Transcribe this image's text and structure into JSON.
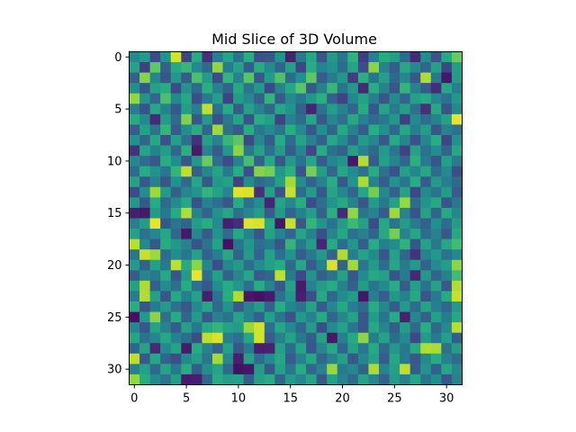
{
  "chart_data": {
    "type": "heatmap",
    "title": "Mid Slice of 3D Volume",
    "xlabel": "",
    "ylabel": "",
    "rows": 32,
    "cols": 32,
    "xlim": [
      -0.5,
      31.5
    ],
    "ylim": [
      31.5,
      -0.5
    ],
    "xticks": [
      0,
      5,
      10,
      15,
      20,
      25,
      30
    ],
    "yticks": [
      0,
      5,
      10,
      15,
      20,
      25,
      30
    ],
    "colormap": "viridis",
    "value_range": [
      0,
      1
    ],
    "grid": false,
    "values": [
      [
        0.47,
        0.55,
        0.24,
        0.52,
        0.94,
        0.21,
        0.62,
        0.14,
        0.43,
        0.59,
        0.38,
        0.63,
        0.25,
        0.28,
        0.51,
        0.1,
        0.41,
        0.6,
        0.27,
        0.54,
        0.4,
        0.65,
        0.18,
        0.44,
        0.62,
        0.56,
        0.36,
        0.12,
        0.49,
        0.26,
        0.61,
        0.77
      ],
      [
        0.58,
        0.19,
        0.75,
        0.31,
        0.61,
        0.67,
        0.48,
        0.35,
        0.84,
        0.42,
        0.58,
        0.3,
        0.62,
        0.48,
        0.33,
        0.57,
        0.21,
        0.63,
        0.44,
        0.51,
        0.36,
        0.59,
        0.24,
        0.83,
        0.45,
        0.29,
        0.61,
        0.47,
        0.33,
        0.58,
        0.22,
        0.56
      ],
      [
        0.31,
        0.82,
        0.46,
        0.27,
        0.53,
        0.29,
        0.71,
        0.55,
        0.23,
        0.66,
        0.44,
        0.74,
        0.28,
        0.55,
        0.72,
        0.36,
        0.5,
        0.75,
        0.29,
        0.42,
        0.53,
        0.18,
        0.64,
        0.39,
        0.57,
        0.34,
        0.47,
        0.28,
        0.89,
        0.41,
        0.07,
        0.56
      ],
      [
        0.5,
        0.27,
        0.58,
        0.63,
        0.23,
        0.52,
        0.35,
        0.64,
        0.45,
        0.32,
        0.61,
        0.39,
        0.54,
        0.22,
        0.45,
        0.6,
        0.74,
        0.28,
        0.45,
        0.67,
        0.39,
        0.54,
        0.12,
        0.63,
        0.45,
        0.27,
        0.66,
        0.44,
        0.29,
        0.13,
        0.6,
        0.43
      ],
      [
        0.84,
        0.52,
        0.34,
        0.71,
        0.47,
        0.61,
        0.24,
        0.42,
        0.57,
        0.2,
        0.56,
        0.47,
        0.31,
        0.66,
        0.29,
        0.48,
        0.4,
        0.53,
        0.64,
        0.31,
        0.2,
        0.46,
        0.58,
        0.43,
        0.27,
        0.48,
        0.33,
        0.57,
        0.62,
        0.46,
        0.38,
        0.53
      ],
      [
        0.43,
        0.25,
        0.6,
        0.45,
        0.28,
        0.56,
        0.43,
        0.91,
        0.38,
        0.62,
        0.3,
        0.58,
        0.44,
        0.34,
        0.6,
        0.52,
        0.31,
        0.11,
        0.38,
        0.56,
        0.45,
        0.33,
        0.62,
        0.27,
        0.59,
        0.42,
        0.56,
        0.38,
        0.14,
        0.61,
        0.26,
        0.47
      ],
      [
        0.62,
        0.48,
        0.12,
        0.55,
        0.36,
        0.81,
        0.27,
        0.54,
        0.24,
        0.41,
        0.59,
        0.26,
        0.63,
        0.57,
        0.2,
        0.44,
        0.36,
        0.6,
        0.28,
        0.47,
        0.38,
        0.61,
        0.44,
        0.36,
        0.41,
        0.53,
        0.19,
        0.48,
        0.36,
        0.45,
        0.58,
        0.97
      ],
      [
        0.29,
        0.57,
        0.39,
        0.66,
        0.29,
        0.49,
        0.62,
        0.33,
        0.86,
        0.38,
        0.29,
        0.62,
        0.41,
        0.48,
        0.39,
        0.63,
        0.48,
        0.28,
        0.5,
        0.33,
        0.61,
        0.45,
        0.29,
        0.63,
        0.5,
        0.34,
        0.6,
        0.43,
        0.56,
        0.27,
        0.44,
        0.38
      ],
      [
        0.51,
        0.33,
        0.61,
        0.25,
        0.57,
        0.38,
        0.14,
        0.57,
        0.44,
        0.67,
        0.75,
        0.22,
        0.47,
        0.3,
        0.62,
        0.36,
        0.58,
        0.44,
        0.31,
        0.6,
        0.49,
        0.32,
        0.55,
        0.46,
        0.28,
        0.61,
        0.46,
        0.25,
        0.46,
        0.63,
        0.21,
        0.51
      ],
      [
        0.15,
        0.59,
        0.45,
        0.56,
        0.34,
        0.64,
        0.08,
        0.44,
        0.29,
        0.53,
        0.83,
        0.41,
        0.58,
        0.38,
        0.55,
        0.29,
        0.46,
        0.22,
        0.62,
        0.38,
        0.31,
        0.57,
        0.44,
        0.35,
        0.55,
        0.4,
        0.2,
        0.58,
        0.37,
        0.49,
        0.33,
        0.6
      ],
      [
        0.47,
        0.36,
        0.28,
        0.63,
        0.49,
        0.27,
        0.54,
        0.77,
        0.37,
        0.23,
        0.44,
        0.7,
        0.31,
        0.61,
        0.28,
        0.54,
        0.38,
        0.6,
        0.29,
        0.46,
        0.52,
        0.07,
        0.89,
        0.29,
        0.57,
        0.46,
        0.33,
        0.64,
        0.42,
        0.27,
        0.57,
        0.42
      ],
      [
        0.36,
        0.62,
        0.51,
        0.4,
        0.66,
        0.91,
        0.31,
        0.46,
        0.59,
        0.41,
        0.63,
        0.25,
        0.82,
        0.79,
        0.53,
        0.64,
        0.26,
        0.79,
        0.56,
        0.34,
        0.6,
        0.48,
        0.38,
        0.62,
        0.38,
        0.25,
        0.57,
        0.46,
        0.61,
        0.36,
        0.48,
        0.24
      ],
      [
        0.58,
        0.28,
        0.44,
        0.27,
        0.51,
        0.35,
        0.6,
        0.28,
        0.53,
        0.57,
        0.2,
        0.49,
        0.35,
        0.4,
        0.57,
        0.87,
        0.49,
        0.32,
        0.45,
        0.63,
        0.28,
        0.52,
        0.88,
        0.44,
        0.3,
        0.51,
        0.4,
        0.63,
        0.29,
        0.55,
        0.43,
        0.35
      ],
      [
        0.23,
        0.49,
        0.86,
        0.55,
        0.31,
        0.46,
        0.52,
        0.66,
        0.59,
        0.46,
        0.96,
        0.95,
        0.14,
        0.57,
        0.25,
        0.92,
        0.36,
        0.55,
        0.28,
        0.59,
        0.46,
        0.34,
        0.6,
        0.79,
        0.47,
        0.31,
        0.58,
        0.22,
        0.48,
        0.39,
        0.56,
        0.29
      ],
      [
        0.54,
        0.28,
        0.62,
        0.35,
        0.48,
        0.6,
        0.25,
        0.45,
        0.37,
        0.28,
        0.62,
        0.38,
        0.49,
        0.11,
        0.59,
        0.47,
        0.63,
        0.24,
        0.37,
        0.52,
        0.61,
        0.44,
        0.28,
        0.55,
        0.41,
        0.58,
        0.85,
        0.36,
        0.52,
        0.61,
        0.27,
        0.4
      ],
      [
        0.09,
        0.07,
        0.55,
        0.41,
        0.62,
        0.89,
        0.45,
        0.33,
        0.51,
        0.6,
        0.38,
        0.46,
        0.56,
        0.29,
        0.55,
        0.33,
        0.45,
        0.56,
        0.32,
        0.64,
        0.12,
        0.84,
        0.39,
        0.45,
        0.29,
        0.86,
        0.44,
        0.26,
        0.58,
        0.33,
        0.61,
        0.47
      ],
      [
        0.43,
        0.55,
        0.97,
        0.27,
        0.4,
        0.32,
        0.56,
        0.63,
        0.48,
        0.09,
        0.13,
        0.96,
        0.95,
        0.61,
        0.06,
        0.92,
        0.28,
        0.66,
        0.52,
        0.38,
        0.56,
        0.68,
        0.57,
        0.23,
        0.61,
        0.39,
        0.55,
        0.42,
        0.31,
        0.5,
        0.36,
        0.56
      ],
      [
        0.58,
        0.38,
        0.46,
        0.6,
        0.34,
        0.07,
        0.47,
        0.29,
        0.52,
        0.36,
        0.61,
        0.45,
        0.27,
        0.58,
        0.44,
        0.33,
        0.59,
        0.44,
        0.24,
        0.46,
        0.6,
        0.37,
        0.44,
        0.33,
        0.61,
        0.79,
        0.44,
        0.6,
        0.36,
        0.44,
        0.28,
        0.61
      ],
      [
        0.9,
        0.47,
        0.28,
        0.62,
        0.53,
        0.44,
        0.26,
        0.39,
        0.59,
        0.05,
        0.4,
        0.53,
        0.37,
        0.42,
        0.27,
        0.66,
        0.41,
        0.56,
        0.11,
        0.62,
        0.36,
        0.53,
        0.3,
        0.62,
        0.43,
        0.49,
        0.65,
        0.27,
        0.58,
        0.41,
        0.6,
        0.69
      ],
      [
        0.4,
        0.92,
        0.86,
        0.36,
        0.49,
        0.4,
        0.58,
        0.32,
        0.43,
        0.61,
        0.31,
        0.55,
        0.33,
        0.58,
        0.37,
        0.52,
        0.29,
        0.41,
        0.54,
        0.32,
        0.89,
        0.43,
        0.59,
        0.48,
        0.27,
        0.57,
        0.34,
        0.15,
        0.45,
        0.53,
        0.38,
        0.46
      ],
      [
        0.54,
        0.31,
        0.57,
        0.41,
        0.91,
        0.61,
        0.83,
        0.46,
        0.24,
        0.47,
        0.55,
        0.36,
        0.49,
        0.57,
        0.62,
        0.35,
        0.6,
        0.29,
        0.44,
        0.95,
        0.32,
        0.87,
        0.4,
        0.55,
        0.36,
        0.6,
        0.42,
        0.54,
        0.32,
        0.48,
        0.56,
        0.83
      ],
      [
        0.29,
        0.46,
        0.41,
        0.61,
        0.27,
        0.55,
        0.97,
        0.37,
        0.57,
        0.31,
        0.46,
        0.6,
        0.29,
        0.34,
        0.91,
        0.42,
        0.22,
        0.52,
        0.31,
        0.39,
        0.58,
        0.28,
        0.48,
        0.61,
        0.57,
        0.26,
        0.42,
        0.12,
        0.54,
        0.33,
        0.45,
        0.69
      ],
      [
        0.57,
        0.88,
        0.31,
        0.48,
        0.37,
        0.62,
        0.38,
        0.28,
        0.5,
        0.62,
        0.53,
        0.37,
        0.62,
        0.45,
        0.28,
        0.58,
        0.08,
        0.44,
        0.56,
        0.62,
        0.45,
        0.31,
        0.56,
        0.39,
        0.48,
        0.63,
        0.3,
        0.57,
        0.38,
        0.58,
        0.28,
        0.89
      ],
      [
        0.42,
        0.89,
        0.57,
        0.27,
        0.61,
        0.43,
        0.58,
        0.09,
        0.38,
        0.63,
        0.89,
        0.07,
        0.05,
        0.08,
        0.38,
        0.53,
        0.09,
        0.24,
        0.61,
        0.34,
        0.49,
        0.56,
        0.06,
        0.43,
        0.29,
        0.53,
        0.45,
        0.61,
        0.27,
        0.42,
        0.62,
        0.92
      ],
      [
        0.63,
        0.27,
        0.42,
        0.55,
        0.38,
        0.28,
        0.47,
        0.6,
        0.35,
        0.52,
        0.29,
        0.45,
        0.56,
        0.32,
        0.63,
        0.46,
        0.39,
        0.59,
        0.29,
        0.46,
        0.61,
        0.43,
        0.35,
        0.62,
        0.47,
        0.3,
        0.54,
        0.36,
        0.58,
        0.43,
        0.33,
        0.54
      ],
      [
        0.05,
        0.54,
        0.83,
        0.37,
        0.62,
        0.33,
        0.55,
        0.28,
        0.44,
        0.38,
        0.59,
        0.44,
        0.31,
        0.57,
        0.4,
        0.26,
        0.54,
        0.45,
        0.62,
        0.33,
        0.46,
        0.58,
        0.27,
        0.56,
        0.39,
        0.62,
        0.1,
        0.46,
        0.31,
        0.57,
        0.42,
        0.6
      ],
      [
        0.46,
        0.27,
        0.59,
        0.44,
        0.3,
        0.57,
        0.41,
        0.61,
        0.66,
        0.58,
        0.55,
        0.85,
        0.94,
        0.37,
        0.6,
        0.47,
        0.33,
        0.55,
        0.24,
        0.48,
        0.58,
        0.4,
        0.27,
        0.61,
        0.46,
        0.3,
        0.56,
        0.35,
        0.63,
        0.35,
        0.48,
        0.9
      ],
      [
        0.6,
        0.38,
        0.46,
        0.61,
        0.45,
        0.36,
        0.23,
        0.91,
        0.95,
        0.43,
        0.37,
        0.6,
        0.94,
        0.29,
        0.44,
        0.58,
        0.41,
        0.3,
        0.58,
        0.07,
        0.44,
        0.61,
        0.83,
        0.43,
        0.59,
        0.36,
        0.48,
        0.22,
        0.55,
        0.41,
        0.57,
        0.3
      ],
      [
        0.33,
        0.58,
        0.12,
        0.48,
        0.59,
        0.08,
        0.62,
        0.44,
        0.32,
        0.58,
        0.26,
        0.42,
        0.09,
        0.1,
        0.57,
        0.36,
        0.59,
        0.27,
        0.46,
        0.61,
        0.33,
        0.57,
        0.4,
        0.61,
        0.35,
        0.53,
        0.41,
        0.61,
        0.89,
        0.88,
        0.38,
        0.56
      ],
      [
        0.91,
        0.28,
        0.6,
        0.33,
        0.24,
        0.47,
        0.56,
        0.39,
        0.87,
        0.47,
        0.09,
        0.58,
        0.36,
        0.48,
        0.6,
        0.29,
        0.44,
        0.6,
        0.34,
        0.45,
        0.57,
        0.28,
        0.46,
        0.58,
        0.29,
        0.6,
        0.41,
        0.28,
        0.47,
        0.62,
        0.44,
        0.36
      ],
      [
        0.44,
        0.57,
        0.35,
        0.59,
        0.41,
        0.62,
        0.3,
        0.5,
        0.59,
        0.35,
        0.05,
        0.07,
        0.56,
        0.28,
        0.57,
        0.4,
        0.62,
        0.34,
        0.44,
        0.85,
        0.42,
        0.47,
        0.32,
        0.88,
        0.44,
        0.57,
        0.91,
        0.3,
        0.52,
        0.31,
        0.6,
        0.47
      ],
      [
        0.84,
        0.62,
        0.47,
        0.38,
        0.56,
        0.08,
        0.09,
        0.33,
        0.62,
        0.56,
        0.58,
        0.3,
        0.58,
        0.62,
        0.33,
        0.55,
        0.46,
        0.59,
        0.28,
        0.58,
        0.44,
        0.35,
        0.59,
        0.46,
        0.32,
        0.55,
        0.44,
        0.6,
        0.38,
        0.49,
        0.27,
        0.44
      ]
    ]
  }
}
